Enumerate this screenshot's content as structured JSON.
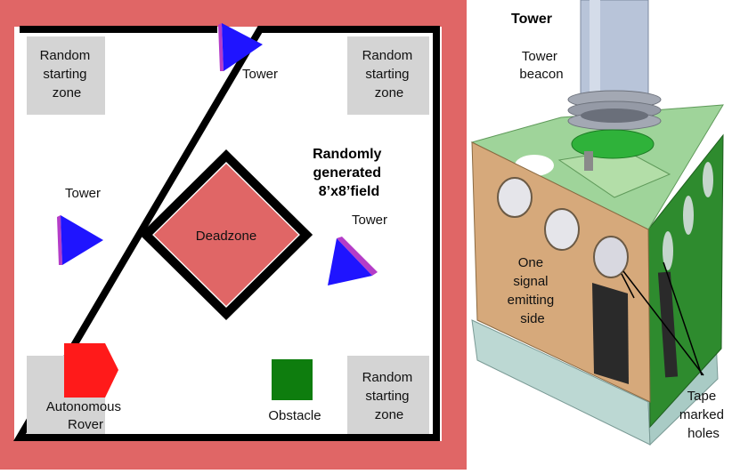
{
  "field": {
    "title_lines": [
      "Randomly",
      "generated",
      "8’x8’field"
    ],
    "deadzone_label": "Deadzone",
    "start_zones": [
      {
        "lines": [
          "Random",
          "starting",
          "zone"
        ]
      },
      {
        "lines": [
          "Random",
          "starting",
          "zone"
        ]
      },
      {
        "lines": [
          "Random",
          "starting",
          "zone"
        ]
      }
    ],
    "tower_labels": [
      "Tower",
      "Tower",
      "Tower"
    ],
    "rover_lines": [
      "Autonomous",
      "Rover"
    ],
    "obstacle_label": "Obstacle"
  },
  "tower_model": {
    "heading": "Tower",
    "beacon_lines": [
      "Tower",
      "beacon"
    ],
    "side_lines": [
      "One",
      "signal",
      "emitting",
      "side"
    ],
    "tape_lines": [
      "Tape",
      "marked",
      "holes"
    ]
  },
  "colors": {
    "field_border": "#e06666",
    "deadzone": "#e06666",
    "start_zone": "#d4d4d4",
    "tower": "#1f14ff",
    "tower_edge": "#b43cc8",
    "rover": "#ff1a1a",
    "obstacle": "#0e7d0e",
    "wood": "#d6a97b",
    "green_board": "#2e8b2e",
    "teal_base": "#bcd8d3"
  }
}
